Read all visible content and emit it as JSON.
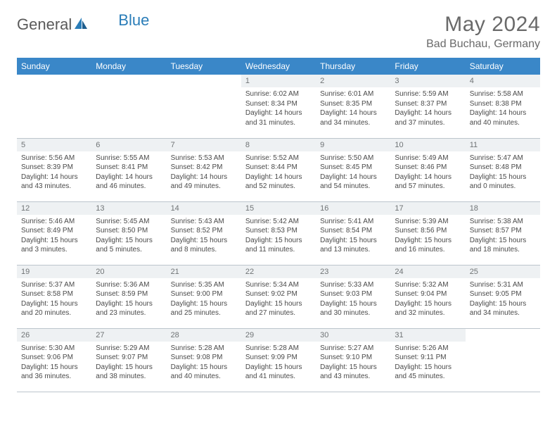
{
  "branding": {
    "name_part1": "General",
    "name_part2": "Blue",
    "logo_color": "#2a7db8",
    "text_color": "#5a5a5a"
  },
  "header": {
    "title": "May 2024",
    "location": "Bad Buchau, Germany"
  },
  "colors": {
    "header_bg": "#3a87c8",
    "header_fg": "#ffffff",
    "daynum_bg": "#eef1f3",
    "daynum_fg": "#707476",
    "border": "#bcc5cc",
    "body_text": "#4a4a4a"
  },
  "weekdays": [
    "Sunday",
    "Monday",
    "Tuesday",
    "Wednesday",
    "Thursday",
    "Friday",
    "Saturday"
  ],
  "weeks": [
    [
      {
        "empty": true
      },
      {
        "empty": true
      },
      {
        "empty": true
      },
      {
        "num": "1",
        "sunrise": "Sunrise: 6:02 AM",
        "sunset": "Sunset: 8:34 PM",
        "daylight": "Daylight: 14 hours and 31 minutes."
      },
      {
        "num": "2",
        "sunrise": "Sunrise: 6:01 AM",
        "sunset": "Sunset: 8:35 PM",
        "daylight": "Daylight: 14 hours and 34 minutes."
      },
      {
        "num": "3",
        "sunrise": "Sunrise: 5:59 AM",
        "sunset": "Sunset: 8:37 PM",
        "daylight": "Daylight: 14 hours and 37 minutes."
      },
      {
        "num": "4",
        "sunrise": "Sunrise: 5:58 AM",
        "sunset": "Sunset: 8:38 PM",
        "daylight": "Daylight: 14 hours and 40 minutes."
      }
    ],
    [
      {
        "num": "5",
        "sunrise": "Sunrise: 5:56 AM",
        "sunset": "Sunset: 8:39 PM",
        "daylight": "Daylight: 14 hours and 43 minutes."
      },
      {
        "num": "6",
        "sunrise": "Sunrise: 5:55 AM",
        "sunset": "Sunset: 8:41 PM",
        "daylight": "Daylight: 14 hours and 46 minutes."
      },
      {
        "num": "7",
        "sunrise": "Sunrise: 5:53 AM",
        "sunset": "Sunset: 8:42 PM",
        "daylight": "Daylight: 14 hours and 49 minutes."
      },
      {
        "num": "8",
        "sunrise": "Sunrise: 5:52 AM",
        "sunset": "Sunset: 8:44 PM",
        "daylight": "Daylight: 14 hours and 52 minutes."
      },
      {
        "num": "9",
        "sunrise": "Sunrise: 5:50 AM",
        "sunset": "Sunset: 8:45 PM",
        "daylight": "Daylight: 14 hours and 54 minutes."
      },
      {
        "num": "10",
        "sunrise": "Sunrise: 5:49 AM",
        "sunset": "Sunset: 8:46 PM",
        "daylight": "Daylight: 14 hours and 57 minutes."
      },
      {
        "num": "11",
        "sunrise": "Sunrise: 5:47 AM",
        "sunset": "Sunset: 8:48 PM",
        "daylight": "Daylight: 15 hours and 0 minutes."
      }
    ],
    [
      {
        "num": "12",
        "sunrise": "Sunrise: 5:46 AM",
        "sunset": "Sunset: 8:49 PM",
        "daylight": "Daylight: 15 hours and 3 minutes."
      },
      {
        "num": "13",
        "sunrise": "Sunrise: 5:45 AM",
        "sunset": "Sunset: 8:50 PM",
        "daylight": "Daylight: 15 hours and 5 minutes."
      },
      {
        "num": "14",
        "sunrise": "Sunrise: 5:43 AM",
        "sunset": "Sunset: 8:52 PM",
        "daylight": "Daylight: 15 hours and 8 minutes."
      },
      {
        "num": "15",
        "sunrise": "Sunrise: 5:42 AM",
        "sunset": "Sunset: 8:53 PM",
        "daylight": "Daylight: 15 hours and 11 minutes."
      },
      {
        "num": "16",
        "sunrise": "Sunrise: 5:41 AM",
        "sunset": "Sunset: 8:54 PM",
        "daylight": "Daylight: 15 hours and 13 minutes."
      },
      {
        "num": "17",
        "sunrise": "Sunrise: 5:39 AM",
        "sunset": "Sunset: 8:56 PM",
        "daylight": "Daylight: 15 hours and 16 minutes."
      },
      {
        "num": "18",
        "sunrise": "Sunrise: 5:38 AM",
        "sunset": "Sunset: 8:57 PM",
        "daylight": "Daylight: 15 hours and 18 minutes."
      }
    ],
    [
      {
        "num": "19",
        "sunrise": "Sunrise: 5:37 AM",
        "sunset": "Sunset: 8:58 PM",
        "daylight": "Daylight: 15 hours and 20 minutes."
      },
      {
        "num": "20",
        "sunrise": "Sunrise: 5:36 AM",
        "sunset": "Sunset: 8:59 PM",
        "daylight": "Daylight: 15 hours and 23 minutes."
      },
      {
        "num": "21",
        "sunrise": "Sunrise: 5:35 AM",
        "sunset": "Sunset: 9:00 PM",
        "daylight": "Daylight: 15 hours and 25 minutes."
      },
      {
        "num": "22",
        "sunrise": "Sunrise: 5:34 AM",
        "sunset": "Sunset: 9:02 PM",
        "daylight": "Daylight: 15 hours and 27 minutes."
      },
      {
        "num": "23",
        "sunrise": "Sunrise: 5:33 AM",
        "sunset": "Sunset: 9:03 PM",
        "daylight": "Daylight: 15 hours and 30 minutes."
      },
      {
        "num": "24",
        "sunrise": "Sunrise: 5:32 AM",
        "sunset": "Sunset: 9:04 PM",
        "daylight": "Daylight: 15 hours and 32 minutes."
      },
      {
        "num": "25",
        "sunrise": "Sunrise: 5:31 AM",
        "sunset": "Sunset: 9:05 PM",
        "daylight": "Daylight: 15 hours and 34 minutes."
      }
    ],
    [
      {
        "num": "26",
        "sunrise": "Sunrise: 5:30 AM",
        "sunset": "Sunset: 9:06 PM",
        "daylight": "Daylight: 15 hours and 36 minutes."
      },
      {
        "num": "27",
        "sunrise": "Sunrise: 5:29 AM",
        "sunset": "Sunset: 9:07 PM",
        "daylight": "Daylight: 15 hours and 38 minutes."
      },
      {
        "num": "28",
        "sunrise": "Sunrise: 5:28 AM",
        "sunset": "Sunset: 9:08 PM",
        "daylight": "Daylight: 15 hours and 40 minutes."
      },
      {
        "num": "29",
        "sunrise": "Sunrise: 5:28 AM",
        "sunset": "Sunset: 9:09 PM",
        "daylight": "Daylight: 15 hours and 41 minutes."
      },
      {
        "num": "30",
        "sunrise": "Sunrise: 5:27 AM",
        "sunset": "Sunset: 9:10 PM",
        "daylight": "Daylight: 15 hours and 43 minutes."
      },
      {
        "num": "31",
        "sunrise": "Sunrise: 5:26 AM",
        "sunset": "Sunset: 9:11 PM",
        "daylight": "Daylight: 15 hours and 45 minutes."
      },
      {
        "empty": true
      }
    ]
  ]
}
